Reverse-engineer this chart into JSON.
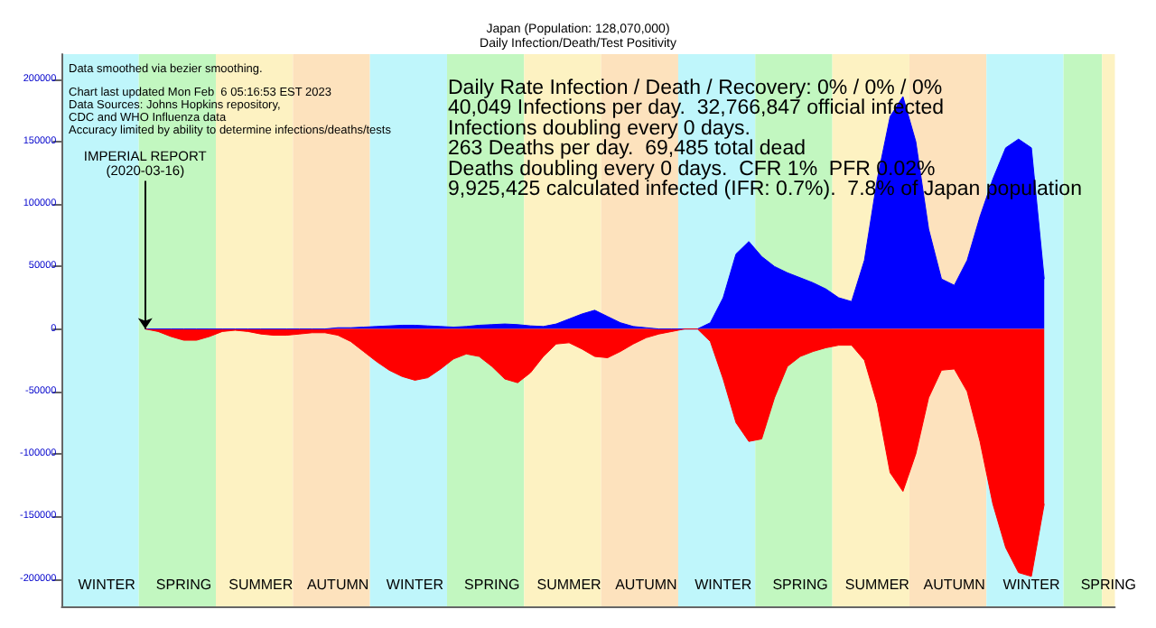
{
  "chart_data": {
    "type": "area",
    "title": "Japan (Population: 128,070,000)",
    "subtitle": "Daily Infection/Death/Test Positivity",
    "categories": [
      null,
      null,
      null,
      "WINTER",
      null,
      null,
      null,
      null,
      null,
      "SPRING",
      null,
      null,
      null,
      null,
      null,
      "SUMMER",
      null,
      null,
      null,
      null,
      null,
      "AUTUMN",
      null,
      null,
      null,
      null,
      null,
      "WINTER",
      null,
      null,
      null,
      null,
      null,
      "SPRING",
      null,
      null,
      null,
      null,
      null,
      "SUMMER",
      null,
      null,
      null,
      null,
      null,
      "AUTUMN",
      null,
      null,
      null,
      null,
      null,
      "WINTER",
      null,
      null,
      null,
      null,
      null,
      "SPRING",
      null,
      null,
      null,
      null,
      null,
      "SUMMER",
      null,
      null,
      null,
      null,
      null,
      "AUTUMN",
      null,
      null,
      null,
      null,
      null,
      "WINTER",
      null,
      null,
      null,
      null,
      null,
      "SPRING"
    ],
    "ylim": [
      -222000,
      220000
    ],
    "yticks": [
      -200000,
      -150000,
      -100000,
      -50000,
      0,
      50000,
      100000,
      150000,
      200000
    ],
    "grid": false,
    "series": [
      {
        "color": "#0000ff",
        "values": [
          null,
          null,
          null,
          null,
          null,
          null,
          0,
          0,
          0,
          0,
          0,
          0,
          0,
          0,
          0,
          0,
          0,
          0,
          0,
          0,
          0,
          1000,
          1000,
          1500,
          2000,
          2500,
          3000,
          3000,
          2500,
          2000,
          1500,
          2000,
          3000,
          3500,
          4000,
          3500,
          2500,
          2000,
          4000,
          8000,
          12000,
          15000,
          10000,
          5000,
          2000,
          1000,
          0,
          0,
          0,
          0,
          5000,
          25000,
          60000,
          70000,
          58000,
          50000,
          45000,
          41000,
          37000,
          32000,
          25000,
          22000,
          55000,
          120000,
          170000,
          186000,
          150000,
          80000,
          40000,
          35000,
          55000,
          90000,
          120000,
          145000,
          152000,
          145000,
          40000,
          null,
          null,
          null,
          null,
          null
        ]
      },
      {
        "color": "#ff0000",
        "values": [
          null,
          null,
          null,
          null,
          null,
          null,
          0,
          -2000,
          -6000,
          -9000,
          -9000,
          -6000,
          -2000,
          -1000,
          -2000,
          -4000,
          -5000,
          -5000,
          -4000,
          -3000,
          -3000,
          -5000,
          -10000,
          -18000,
          -26000,
          -33000,
          -38000,
          -41000,
          -39000,
          -32000,
          -24000,
          -20000,
          -22000,
          -30000,
          -40000,
          -43000,
          -35000,
          -22000,
          -12000,
          -11000,
          -16000,
          -22000,
          -23000,
          -18000,
          -12000,
          -7000,
          -4000,
          -2000,
          0,
          0,
          -10000,
          -40000,
          -75000,
          -90000,
          -88000,
          -55000,
          -30000,
          -22000,
          -18000,
          -15000,
          -13000,
          -13000,
          -25000,
          -60000,
          -115000,
          -130000,
          -100000,
          -55000,
          -33000,
          -32000,
          -50000,
          -90000,
          -140000,
          -175000,
          -195000,
          -198000,
          -140000,
          null,
          null,
          null,
          null,
          null
        ]
      }
    ],
    "annotations": [
      "Data smoothed via bezier smoothing.",
      "Chart last updated Mon Feb  6 05:16:53 EST 2023\nData Sources: Johns Hopkins repository,\nCDC and WHO Influenza data\nAccuracy limited by ability to determine infections/deaths/tests",
      "Daily Rate Infection / Death / Recovery: 0% / 0% / 0%\n40,049 Infections per day.  32,766,847 official infected\nInfections doubling every 0 days.\n263 Deaths per day.  69,485 total dead\nDeaths doubling every 0 days.  CFR 1%  PFR 0.02%\n9,925,425 calculated infected (IFR: 0.7%).  7.8% of Japan population",
      {
        "text": "IMPERIAL REPORT\n(2020-03-16)",
        "y": 0
      }
    ]
  }
}
